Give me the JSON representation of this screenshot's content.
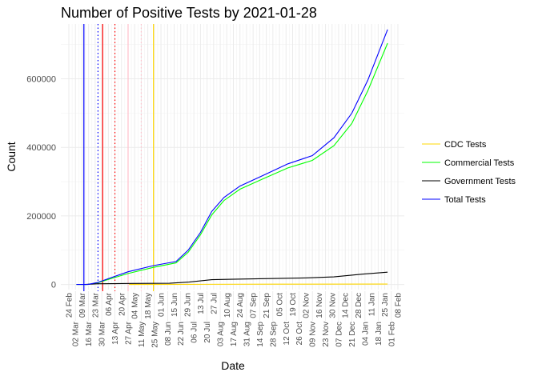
{
  "chart_data": {
    "type": "line",
    "title": "Number of Positive Tests by  2021-01-28",
    "xlabel": "Date",
    "ylabel": "Count",
    "x_start": "2020-02-24",
    "x_end": "2021-02-08",
    "ylim": [
      -15000,
      760000
    ],
    "y_ticks": [
      0,
      200000,
      400000,
      600000
    ],
    "y_tick_labels": [
      "0",
      "200000",
      "400000",
      "600000"
    ],
    "x_tick_labels": [
      "24 Feb",
      "02 Mar",
      "09 Mar",
      "16 Mar",
      "23 Mar",
      "30 Mar",
      "06 Apr",
      "13 Apr",
      "20 Apr",
      "27 Apr",
      "04 May",
      "11 May",
      "18 May",
      "25 May",
      "01 Jun",
      "08 Jun",
      "15 Jun",
      "22 Jun",
      "29 Jun",
      "06 Jul",
      "13 Jul",
      "20 Jul",
      "27 Jul",
      "03 Aug",
      "10 Aug",
      "17 Aug",
      "24 Aug",
      "31 Aug",
      "07 Sep",
      "14 Sep",
      "21 Sep",
      "28 Sep",
      "05 Oct",
      "12 Oct",
      "19 Oct",
      "26 Oct",
      "02 Nov",
      "09 Nov",
      "16 Nov",
      "23 Nov",
      "30 Nov",
      "07 Dec",
      "14 Dec",
      "21 Dec",
      "28 Dec",
      "04 Jan",
      "11 Jan",
      "18 Jan",
      "25 Jan",
      "01 Feb",
      "08 Feb"
    ],
    "grid": true,
    "legend_position": "right",
    "series": [
      {
        "name": "CDC Tests",
        "color": "#FFD700",
        "points": [
          [
            "2020-04-28",
            0
          ],
          [
            "2020-07-01",
            500
          ],
          [
            "2020-10-01",
            800
          ],
          [
            "2021-01-28",
            1000
          ]
        ]
      },
      {
        "name": "Commercial Tests",
        "color": "#00FF00",
        "points": [
          [
            "2020-03-03",
            0
          ],
          [
            "2020-03-15",
            0
          ],
          [
            "2020-03-26",
            5000
          ],
          [
            "2020-04-10",
            18000
          ],
          [
            "2020-04-27",
            32000
          ],
          [
            "2020-05-24",
            50000
          ],
          [
            "2020-06-17",
            63000
          ],
          [
            "2020-06-30",
            94000
          ],
          [
            "2020-07-13",
            145000
          ],
          [
            "2020-07-25",
            203000
          ],
          [
            "2020-08-07",
            245000
          ],
          [
            "2020-08-24",
            278000
          ],
          [
            "2020-09-19",
            310000
          ],
          [
            "2020-10-14",
            340000
          ],
          [
            "2020-11-09",
            362000
          ],
          [
            "2020-12-02",
            405000
          ],
          [
            "2020-12-21",
            470000
          ],
          [
            "2021-01-07",
            565000
          ],
          [
            "2021-01-28",
            704000
          ]
        ]
      },
      {
        "name": "Government Tests",
        "color": "#000000",
        "points": [
          [
            "2020-03-12",
            0
          ],
          [
            "2020-03-26",
            2000
          ],
          [
            "2020-05-01",
            3000
          ],
          [
            "2020-06-10",
            3500
          ],
          [
            "2020-07-01",
            7000
          ],
          [
            "2020-07-25",
            14000
          ],
          [
            "2020-08-15",
            15000
          ],
          [
            "2020-09-20",
            17000
          ],
          [
            "2020-11-01",
            19000
          ],
          [
            "2020-12-02",
            22000
          ],
          [
            "2021-01-01",
            30000
          ],
          [
            "2021-01-28",
            36000
          ]
        ]
      },
      {
        "name": "Total Tests",
        "color": "#0000FF",
        "points": [
          [
            "2020-03-03",
            0
          ],
          [
            "2020-03-15",
            0
          ],
          [
            "2020-03-26",
            6000
          ],
          [
            "2020-04-10",
            21000
          ],
          [
            "2020-04-27",
            37000
          ],
          [
            "2020-05-24",
            55000
          ],
          [
            "2020-06-17",
            67000
          ],
          [
            "2020-06-30",
            100000
          ],
          [
            "2020-07-13",
            152000
          ],
          [
            "2020-07-25",
            213000
          ],
          [
            "2020-08-07",
            254000
          ],
          [
            "2020-08-24",
            287000
          ],
          [
            "2020-09-19",
            320000
          ],
          [
            "2020-10-14",
            352000
          ],
          [
            "2020-11-09",
            376000
          ],
          [
            "2020-12-02",
            428000
          ],
          [
            "2020-12-21",
            500000
          ],
          [
            "2021-01-07",
            596000
          ],
          [
            "2021-01-28",
            744000
          ]
        ]
      }
    ],
    "vertical_lines": [
      {
        "date": "2020-03-11",
        "color": "#0000FF",
        "style": "solid"
      },
      {
        "date": "2020-03-26",
        "color": "#0000FF",
        "style": "dotted"
      },
      {
        "date": "2020-03-31",
        "color": "#FF0000",
        "style": "solid"
      },
      {
        "date": "2020-04-13",
        "color": "#FF0000",
        "style": "dotted"
      },
      {
        "date": "2020-04-27",
        "color": "#FFC0CB",
        "style": "solid"
      },
      {
        "date": "2020-05-11",
        "color": "#FFC0CB",
        "style": "dotted"
      },
      {
        "date": "2020-05-24",
        "color": "#FFD700",
        "style": "solid"
      }
    ]
  }
}
